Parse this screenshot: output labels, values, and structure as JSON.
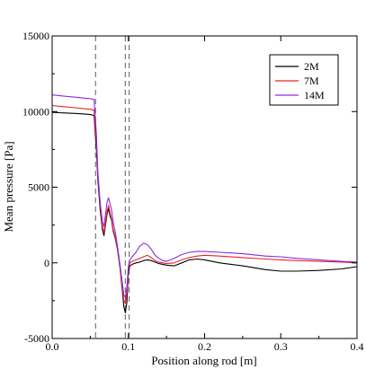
{
  "chart_data": {
    "type": "line",
    "title": "",
    "xlabel": "Position along rod [m]",
    "ylabel": "Mean pressure [Pa]",
    "xlim": [
      0.0,
      0.4
    ],
    "ylim": [
      -5000,
      15000
    ],
    "xticks": [
      0.0,
      0.1,
      0.2,
      0.3,
      0.4
    ],
    "xtick_labels": [
      "0.0",
      "0.1",
      "0.2",
      "0.3",
      "0.4"
    ],
    "yticks": [
      -5000,
      0,
      5000,
      10000,
      15000
    ],
    "ytick_labels": [
      "-5000",
      "0",
      "5000",
      "10000",
      "15000"
    ],
    "grid": false,
    "legend_position": "top-right",
    "vertical_reference_lines": [
      0.057,
      0.096,
      0.101
    ],
    "series": [
      {
        "name": "2M",
        "color": "#000000",
        "x": [
          0.0,
          0.01,
          0.02,
          0.03,
          0.04,
          0.05,
          0.055,
          0.058,
          0.06,
          0.063,
          0.066,
          0.068,
          0.07,
          0.072,
          0.074,
          0.076,
          0.078,
          0.08,
          0.083,
          0.086,
          0.089,
          0.092,
          0.094,
          0.096,
          0.098,
          0.1,
          0.102,
          0.105,
          0.11,
          0.115,
          0.12,
          0.125,
          0.13,
          0.135,
          0.14,
          0.145,
          0.15,
          0.16,
          0.17,
          0.18,
          0.19,
          0.2,
          0.22,
          0.25,
          0.28,
          0.3,
          0.32,
          0.35,
          0.38,
          0.4
        ],
        "values": [
          9950,
          9920,
          9900,
          9880,
          9850,
          9800,
          9750,
          7500,
          5500,
          3500,
          2200,
          1800,
          2500,
          3200,
          3600,
          3100,
          2800,
          2100,
          1600,
          800,
          -300,
          -1800,
          -2900,
          -3300,
          -2600,
          -600,
          -200,
          -100,
          0,
          50,
          150,
          200,
          150,
          50,
          -50,
          -100,
          -150,
          -200,
          0,
          200,
          250,
          200,
          0,
          -200,
          -450,
          -550,
          -550,
          -500,
          -400,
          -250
        ]
      },
      {
        "name": "7M",
        "color": "#e8232a",
        "x": [
          0.0,
          0.01,
          0.02,
          0.03,
          0.04,
          0.05,
          0.055,
          0.058,
          0.06,
          0.063,
          0.066,
          0.068,
          0.07,
          0.072,
          0.074,
          0.076,
          0.078,
          0.08,
          0.083,
          0.086,
          0.089,
          0.092,
          0.094,
          0.096,
          0.098,
          0.1,
          0.102,
          0.105,
          0.11,
          0.115,
          0.12,
          0.125,
          0.13,
          0.135,
          0.14,
          0.145,
          0.15,
          0.16,
          0.17,
          0.18,
          0.19,
          0.2,
          0.22,
          0.25,
          0.28,
          0.3,
          0.32,
          0.35,
          0.38,
          0.4
        ],
        "values": [
          10400,
          10350,
          10300,
          10250,
          10200,
          10150,
          10100,
          8000,
          5800,
          3800,
          2400,
          2000,
          2700,
          3400,
          3800,
          3300,
          2900,
          2200,
          1700,
          900,
          -200,
          -1600,
          -2500,
          -2700,
          -2000,
          -400,
          0,
          100,
          200,
          300,
          400,
          500,
          350,
          150,
          50,
          0,
          -50,
          0,
          200,
          350,
          450,
          500,
          450,
          350,
          250,
          200,
          150,
          100,
          50,
          0
        ]
      },
      {
        "name": "14M",
        "color": "#8a2be2",
        "x": [
          0.0,
          0.01,
          0.02,
          0.03,
          0.04,
          0.05,
          0.055,
          0.058,
          0.06,
          0.063,
          0.066,
          0.068,
          0.07,
          0.072,
          0.074,
          0.076,
          0.078,
          0.08,
          0.083,
          0.086,
          0.089,
          0.092,
          0.094,
          0.096,
          0.098,
          0.1,
          0.102,
          0.105,
          0.11,
          0.115,
          0.12,
          0.125,
          0.13,
          0.135,
          0.14,
          0.145,
          0.15,
          0.16,
          0.17,
          0.18,
          0.19,
          0.2,
          0.22,
          0.25,
          0.28,
          0.3,
          0.32,
          0.35,
          0.38,
          0.4
        ],
        "values": [
          11100,
          11050,
          11000,
          10950,
          10900,
          10850,
          10800,
          8500,
          6000,
          4000,
          2700,
          2400,
          3200,
          4000,
          4300,
          3900,
          3500,
          2700,
          2000,
          1000,
          -100,
          -1300,
          -2100,
          -2300,
          -1600,
          -200,
          200,
          400,
          700,
          1100,
          1300,
          1200,
          900,
          500,
          300,
          150,
          100,
          300,
          550,
          700,
          750,
          750,
          700,
          600,
          450,
          400,
          300,
          200,
          100,
          50
        ]
      }
    ]
  }
}
